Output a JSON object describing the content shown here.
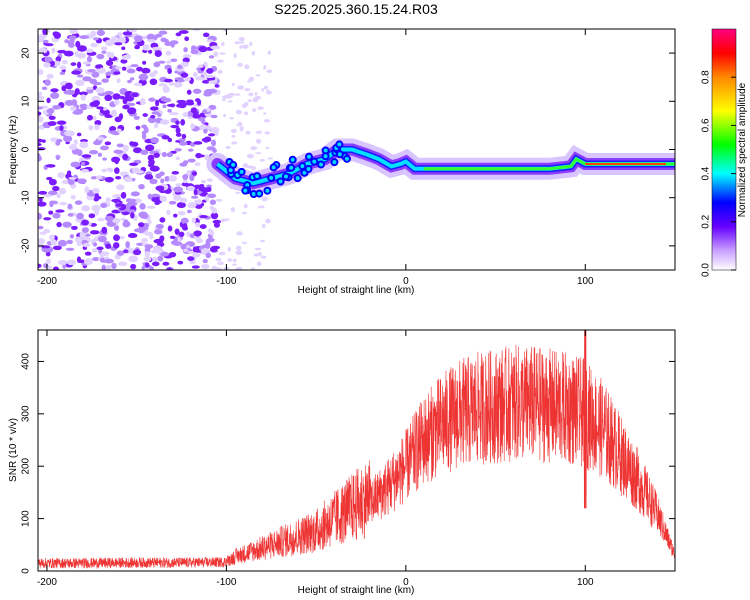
{
  "title": "S225.2025.360.15.24.R03",
  "chart_data": [
    {
      "type": "heatmap",
      "name": "spectrogram",
      "xlabel": "Height of straight line (km)",
      "ylabel": "Frequency (Hz)",
      "xlim": [
        -205,
        150
      ],
      "ylim": [
        -25,
        25
      ],
      "x_ticks": [
        -200,
        -100,
        0,
        100
      ],
      "y_ticks": [
        -20,
        -10,
        0,
        10,
        20
      ],
      "colorbar": {
        "label": "Normalized spectral amplitude",
        "range": [
          0,
          1
        ],
        "ticks": [
          0.0,
          0.2,
          0.4,
          0.6,
          0.8
        ]
      },
      "ridge": {
        "description": "dominant tone frequency vs height",
        "x": [
          -105,
          -95,
          -85,
          -75,
          -65,
          -55,
          -45,
          -38,
          -30,
          -22,
          -15,
          -8,
          -3,
          0,
          5,
          10,
          20,
          40,
          60,
          80,
          92,
          95,
          100,
          120,
          150
        ],
        "y": [
          -3,
          -6,
          -7,
          -6,
          -5,
          -3,
          -2,
          0,
          0,
          -1,
          -2,
          -3.5,
          -3,
          -2.5,
          -4,
          -4,
          -4,
          -4,
          -4,
          -4,
          -3.5,
          -2,
          -3,
          -3,
          -3
        ]
      },
      "noise_region_x": [
        -205,
        -105
      ]
    },
    {
      "type": "line",
      "name": "snr",
      "xlabel": "Height of straight line (km)",
      "ylabel": "SNR (10 * v/v)",
      "xlim": [
        -205,
        150
      ],
      "ylim": [
        0,
        460
      ],
      "x_ticks": [
        -200,
        -100,
        0,
        100
      ],
      "y_ticks": [
        0,
        100,
        200,
        300,
        400
      ],
      "series": [
        {
          "name": "SNR",
          "color": "#ee3333",
          "x": [
            -205,
            -180,
            -150,
            -120,
            -100,
            -95,
            -90,
            -80,
            -70,
            -60,
            -50,
            -40,
            -30,
            -20,
            -10,
            0,
            10,
            20,
            30,
            40,
            50,
            60,
            70,
            80,
            90,
            100,
            110,
            120,
            130,
            140,
            150
          ],
          "y": [
            15,
            15,
            16,
            16,
            17,
            25,
            30,
            40,
            50,
            60,
            70,
            90,
            110,
            130,
            160,
            200,
            250,
            280,
            300,
            310,
            315,
            320,
            320,
            315,
            310,
            300,
            270,
            220,
            170,
            110,
            30
          ]
        }
      ]
    }
  ]
}
